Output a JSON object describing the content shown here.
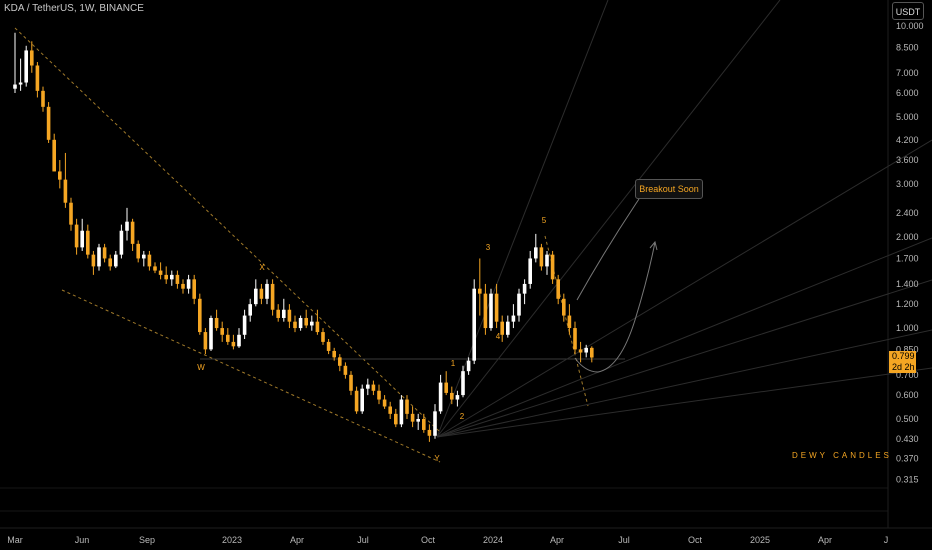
{
  "header": {
    "title": "KDA / TetherUS, 1W, BINANCE",
    "unit_button": "USDT"
  },
  "price_label": {
    "value": "0.799",
    "countdown": "2d 2h"
  },
  "annotation": {
    "text": "Breakout Soon"
  },
  "watermark": "DEWY CANDLES",
  "colors": {
    "up": "#ffffff",
    "down": "#f5a623",
    "wave_label": "#f5a623",
    "background": "#000000"
  },
  "chart_data": {
    "type": "candlestick",
    "y_scale": "log",
    "ylim": [
      0.29,
      13.0
    ],
    "y_ticks": [
      "10.000",
      "8.500",
      "7.000",
      "6.000",
      "5.000",
      "4.200",
      "3.600",
      "3.000",
      "2.400",
      "2.000",
      "1.700",
      "1.400",
      "1.200",
      "1.000",
      "0.850",
      "0.700",
      "0.600",
      "0.500",
      "0.430",
      "0.370",
      "0.315"
    ],
    "x_ticks": [
      "Mar",
      "Jun",
      "Sep",
      "2023",
      "Apr",
      "Jul",
      "Oct",
      "2024",
      "Apr",
      "Jul",
      "Oct",
      "2025",
      "Apr",
      "J"
    ],
    "wave_labels": [
      "W",
      "X",
      "Y",
      "1",
      "2",
      "3",
      "4",
      "5"
    ],
    "candles": [
      [
        6.2,
        9.5,
        6.0,
        6.4
      ],
      [
        6.4,
        7.8,
        6.1,
        6.5
      ],
      [
        6.5,
        8.6,
        6.3,
        8.3
      ],
      [
        8.3,
        8.9,
        7.0,
        7.4
      ],
      [
        7.4,
        7.6,
        5.8,
        6.1
      ],
      [
        6.1,
        6.3,
        5.2,
        5.4
      ],
      [
        5.4,
        5.6,
        4.1,
        4.2
      ],
      [
        4.2,
        4.4,
        3.3,
        3.3
      ],
      [
        3.3,
        3.6,
        2.9,
        3.1
      ],
      [
        3.1,
        3.8,
        2.5,
        2.6
      ],
      [
        2.6,
        2.7,
        2.1,
        2.2
      ],
      [
        2.2,
        2.3,
        1.75,
        1.85
      ],
      [
        1.85,
        2.3,
        1.8,
        2.1
      ],
      [
        2.1,
        2.2,
        1.7,
        1.75
      ],
      [
        1.75,
        1.8,
        1.5,
        1.6
      ],
      [
        1.6,
        1.9,
        1.55,
        1.85
      ],
      [
        1.85,
        1.9,
        1.65,
        1.7
      ],
      [
        1.7,
        1.75,
        1.55,
        1.6
      ],
      [
        1.6,
        1.8,
        1.58,
        1.75
      ],
      [
        1.75,
        2.2,
        1.7,
        2.1
      ],
      [
        2.1,
        2.5,
        1.95,
        2.25
      ],
      [
        2.25,
        2.3,
        1.8,
        1.9
      ],
      [
        1.9,
        1.95,
        1.65,
        1.7
      ],
      [
        1.7,
        1.8,
        1.6,
        1.75
      ],
      [
        1.75,
        1.8,
        1.55,
        1.6
      ],
      [
        1.6,
        1.65,
        1.52,
        1.55
      ],
      [
        1.55,
        1.65,
        1.45,
        1.5
      ],
      [
        1.5,
        1.6,
        1.4,
        1.45
      ],
      [
        1.45,
        1.55,
        1.38,
        1.5
      ],
      [
        1.5,
        1.55,
        1.35,
        1.4
      ],
      [
        1.4,
        1.45,
        1.3,
        1.35
      ],
      [
        1.35,
        1.5,
        1.3,
        1.45
      ],
      [
        1.45,
        1.5,
        1.2,
        1.25
      ],
      [
        1.25,
        1.3,
        0.95,
        0.97
      ],
      [
        0.97,
        1.0,
        0.82,
        0.85
      ],
      [
        0.85,
        1.1,
        0.84,
        1.08
      ],
      [
        1.08,
        1.15,
        0.98,
        1.0
      ],
      [
        1.0,
        1.05,
        0.9,
        0.95
      ],
      [
        0.95,
        1.0,
        0.88,
        0.9
      ],
      [
        0.9,
        0.95,
        0.85,
        0.87
      ],
      [
        0.87,
        1.0,
        0.86,
        0.95
      ],
      [
        0.95,
        1.15,
        0.92,
        1.1
      ],
      [
        1.1,
        1.25,
        1.05,
        1.2
      ],
      [
        1.2,
        1.45,
        1.18,
        1.35
      ],
      [
        1.35,
        1.4,
        1.2,
        1.25
      ],
      [
        1.25,
        1.45,
        1.2,
        1.4
      ],
      [
        1.4,
        1.45,
        1.1,
        1.15
      ],
      [
        1.15,
        1.2,
        1.05,
        1.08
      ],
      [
        1.08,
        1.25,
        1.05,
        1.15
      ],
      [
        1.15,
        1.2,
        1.0,
        1.05
      ],
      [
        1.05,
        1.1,
        0.97,
        1.0
      ],
      [
        1.0,
        1.1,
        0.98,
        1.08
      ],
      [
        1.08,
        1.15,
        1.0,
        1.02
      ],
      [
        1.02,
        1.1,
        0.98,
        1.05
      ],
      [
        1.05,
        1.15,
        0.95,
        0.97
      ],
      [
        0.97,
        1.0,
        0.88,
        0.9
      ],
      [
        0.9,
        0.92,
        0.82,
        0.84
      ],
      [
        0.84,
        0.86,
        0.78,
        0.8
      ],
      [
        0.8,
        0.82,
        0.72,
        0.75
      ],
      [
        0.75,
        0.77,
        0.68,
        0.7
      ],
      [
        0.7,
        0.72,
        0.6,
        0.62
      ],
      [
        0.62,
        0.64,
        0.52,
        0.53
      ],
      [
        0.53,
        0.65,
        0.52,
        0.63
      ],
      [
        0.63,
        0.68,
        0.6,
        0.65
      ],
      [
        0.65,
        0.67,
        0.6,
        0.62
      ],
      [
        0.62,
        0.65,
        0.56,
        0.58
      ],
      [
        0.58,
        0.6,
        0.54,
        0.55
      ],
      [
        0.55,
        0.57,
        0.5,
        0.52
      ],
      [
        0.52,
        0.54,
        0.47,
        0.48
      ],
      [
        0.48,
        0.6,
        0.47,
        0.58
      ],
      [
        0.58,
        0.6,
        0.5,
        0.52
      ],
      [
        0.52,
        0.55,
        0.47,
        0.49
      ],
      [
        0.49,
        0.52,
        0.46,
        0.5
      ],
      [
        0.5,
        0.52,
        0.45,
        0.46
      ],
      [
        0.46,
        0.48,
        0.42,
        0.44
      ],
      [
        0.44,
        0.56,
        0.43,
        0.53
      ],
      [
        0.53,
        0.7,
        0.52,
        0.66
      ],
      [
        0.66,
        0.72,
        0.6,
        0.61
      ],
      [
        0.61,
        0.64,
        0.56,
        0.58
      ],
      [
        0.58,
        0.62,
        0.55,
        0.6
      ],
      [
        0.6,
        0.75,
        0.59,
        0.72
      ],
      [
        0.72,
        0.8,
        0.7,
        0.78
      ],
      [
        0.78,
        1.45,
        0.76,
        1.35
      ],
      [
        1.35,
        1.7,
        1.1,
        1.3
      ],
      [
        1.3,
        1.4,
        0.95,
        1.0
      ],
      [
        1.0,
        1.35,
        0.98,
        1.3
      ],
      [
        1.3,
        1.4,
        1.0,
        1.05
      ],
      [
        1.05,
        1.1,
        0.9,
        0.95
      ],
      [
        0.95,
        1.1,
        0.93,
        1.05
      ],
      [
        1.05,
        1.2,
        1.0,
        1.1
      ],
      [
        1.1,
        1.35,
        1.05,
        1.3
      ],
      [
        1.3,
        1.45,
        1.2,
        1.4
      ],
      [
        1.4,
        1.8,
        1.35,
        1.7
      ],
      [
        1.7,
        2.05,
        1.65,
        1.85
      ],
      [
        1.85,
        1.9,
        1.55,
        1.6
      ],
      [
        1.6,
        1.8,
        1.5,
        1.75
      ],
      [
        1.75,
        1.8,
        1.4,
        1.45
      ],
      [
        1.45,
        1.5,
        1.2,
        1.25
      ],
      [
        1.25,
        1.3,
        1.05,
        1.1
      ],
      [
        1.1,
        1.2,
        0.95,
        1.0
      ],
      [
        1.0,
        1.05,
        0.82,
        0.85
      ],
      [
        0.85,
        0.9,
        0.77,
        0.83
      ],
      [
        0.83,
        0.88,
        0.8,
        0.86
      ],
      [
        0.86,
        0.87,
        0.77,
        0.799
      ]
    ]
  }
}
